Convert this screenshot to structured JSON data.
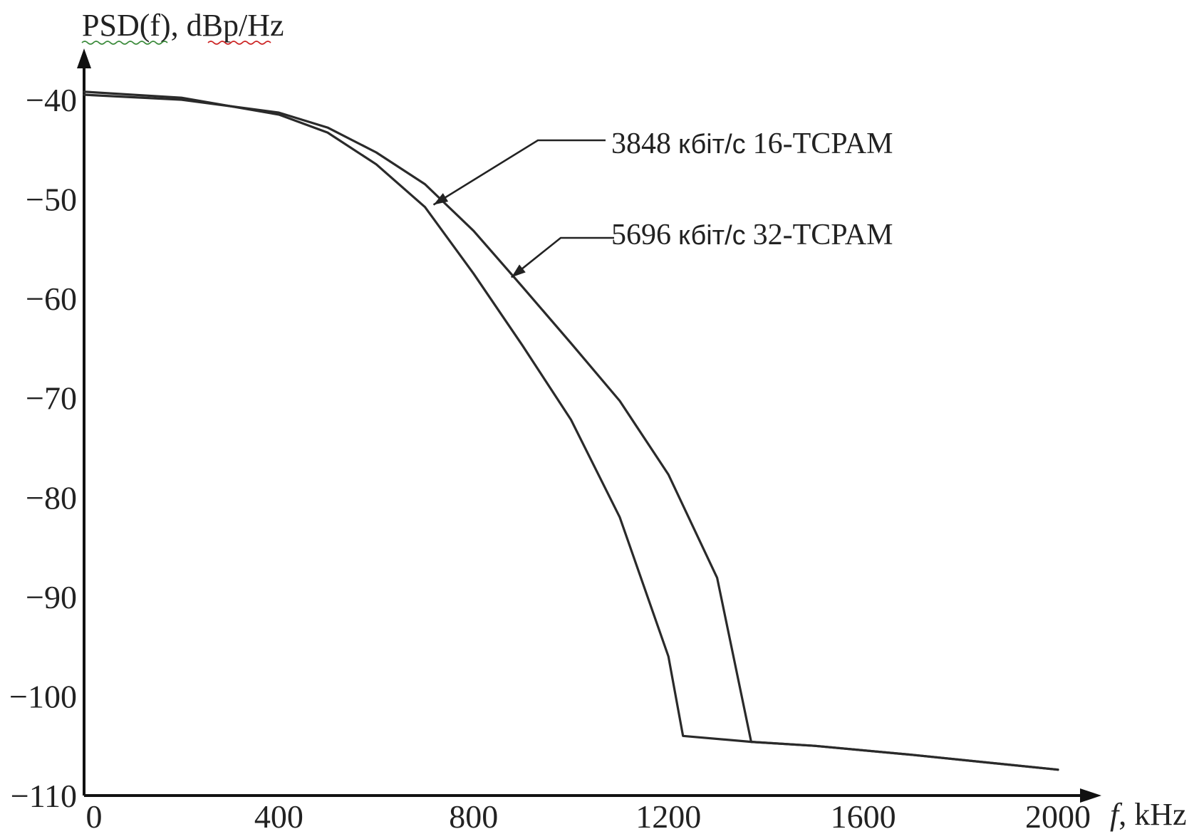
{
  "chart_data": {
    "type": "line",
    "ylabel": "PSD(f),  dBp/Hz",
    "xlabel_italic": "f",
    "xlabel_unit": ", kHz",
    "xlim": [
      0,
      2000
    ],
    "ylim": [
      -110,
      -40
    ],
    "x_ticks": [
      0,
      400,
      800,
      1200,
      1600,
      2000
    ],
    "y_ticks": [
      -40,
      -50,
      -60,
      -70,
      -80,
      -90,
      -100,
      -110
    ],
    "x_tick_labels": [
      "0",
      "400",
      "800",
      "1200",
      "1600",
      "2000"
    ],
    "y_tick_labels": [
      "−40",
      "−50",
      "−60",
      "−70",
      "−80",
      "−90",
      "−100",
      "−110"
    ],
    "grid": false,
    "series": [
      {
        "name": "3848 кбіт/с 16-TCPAM",
        "x": [
          0,
          200,
          400,
          500,
          600,
          700,
          800,
          900,
          1000,
          1100,
          1200,
          1230,
          1370,
          1500,
          1700,
          2000
        ],
        "y": [
          -39.2,
          -39.8,
          -41.5,
          -43.3,
          -46.5,
          -50.8,
          -57.5,
          -64.7,
          -72.2,
          -82.0,
          -96.0,
          -104.0,
          -104.6,
          -105.0,
          -105.9,
          -107.4
        ]
      },
      {
        "name": "5696 кбіт/с 32-TCPAM",
        "x": [
          0,
          200,
          400,
          500,
          600,
          700,
          800,
          900,
          1000,
          1100,
          1200,
          1300,
          1370,
          1500,
          1700,
          2000
        ],
        "y": [
          -39.5,
          -40.0,
          -41.3,
          -42.8,
          -45.3,
          -48.5,
          -53.2,
          -58.8,
          -64.5,
          -70.3,
          -77.7,
          -88.1,
          -104.6,
          -105.0,
          -105.9,
          -107.4
        ]
      }
    ],
    "annotations": [
      {
        "number": "3848",
        "unit": "кбіт/с",
        "label": "16-TCPAM",
        "series": 0,
        "x": 700,
        "y": -51.0
      },
      {
        "number": "5696",
        "unit": "кбіт/с",
        "label": "32-TCPAM",
        "series": 1,
        "x": 860,
        "y": -58.3
      }
    ]
  }
}
